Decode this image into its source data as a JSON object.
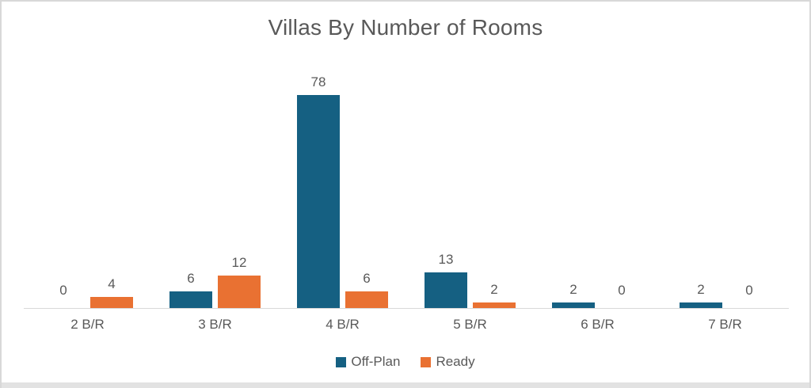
{
  "window": {
    "background": "#ffffff",
    "border_color": "#d8d8d8",
    "bottom_band_color": "#e2e2e2"
  },
  "chart_data": {
    "type": "bar",
    "title": "Villas By Number of Rooms",
    "categories": [
      "2 B/R",
      "3 B/R",
      "4 B/R",
      "5 B/R",
      "6 B/R",
      "7 B/R"
    ],
    "series": [
      {
        "name": "Off-Plan",
        "color": "#156082",
        "values": [
          0,
          6,
          78,
          13,
          2,
          2
        ]
      },
      {
        "name": "Ready",
        "color": "#E97132",
        "values": [
          4,
          12,
          6,
          2,
          0,
          0
        ]
      }
    ],
    "xlabel": "",
    "ylabel": "",
    "ylim": [
      0,
      80
    ],
    "grid": false,
    "data_labels": true,
    "legend_position": "bottom",
    "axis_line_color": "#d9d9d9",
    "text_color": "#595959"
  }
}
